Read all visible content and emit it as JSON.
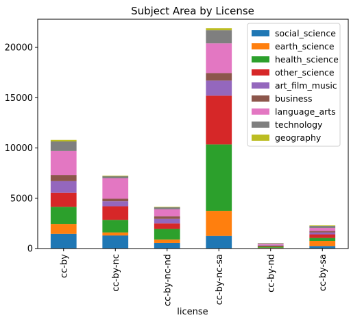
{
  "chart_data": {
    "type": "bar",
    "stacked": true,
    "title": "Subject Area by License",
    "xlabel": "license",
    "ylabel": "",
    "ylim": [
      0,
      22800
    ],
    "yticks": [
      0,
      5000,
      10000,
      15000,
      20000
    ],
    "ytick_labels": [
      "0",
      "5000",
      "10000",
      "15000",
      "20000"
    ],
    "categories": [
      "cc-by",
      "cc-by-nc",
      "cc-by-nc-nd",
      "cc-by-nc-sa",
      "cc-by-nd",
      "cc-by-sa"
    ],
    "legend_position": "top-right",
    "series": [
      {
        "name": "social_science",
        "color": "#1f77b4",
        "values": [
          1450,
          1300,
          550,
          1250,
          50,
          250
        ]
      },
      {
        "name": "earth_science",
        "color": "#ff7f0e",
        "values": [
          1000,
          300,
          350,
          2500,
          30,
          500
        ]
      },
      {
        "name": "health_science",
        "color": "#2ca02c",
        "values": [
          1700,
          1250,
          1050,
          6600,
          120,
          300
        ]
      },
      {
        "name": "other_science",
        "color": "#d62728",
        "values": [
          1400,
          1350,
          550,
          4850,
          80,
          350
        ]
      },
      {
        "name": "art_film_music",
        "color": "#9467bd",
        "values": [
          1150,
          500,
          450,
          1500,
          50,
          200
        ]
      },
      {
        "name": "business",
        "color": "#8c564b",
        "values": [
          600,
          250,
          250,
          750,
          20,
          150
        ]
      },
      {
        "name": "language_arts",
        "color": "#e377c2",
        "values": [
          2400,
          2050,
          700,
          2950,
          120,
          300
        ]
      },
      {
        "name": "technology",
        "color": "#7f7f7f",
        "values": [
          950,
          200,
          200,
          1300,
          50,
          200
        ]
      },
      {
        "name": "geography",
        "color": "#bcbd22",
        "values": [
          150,
          50,
          50,
          200,
          10,
          50
        ]
      }
    ]
  }
}
